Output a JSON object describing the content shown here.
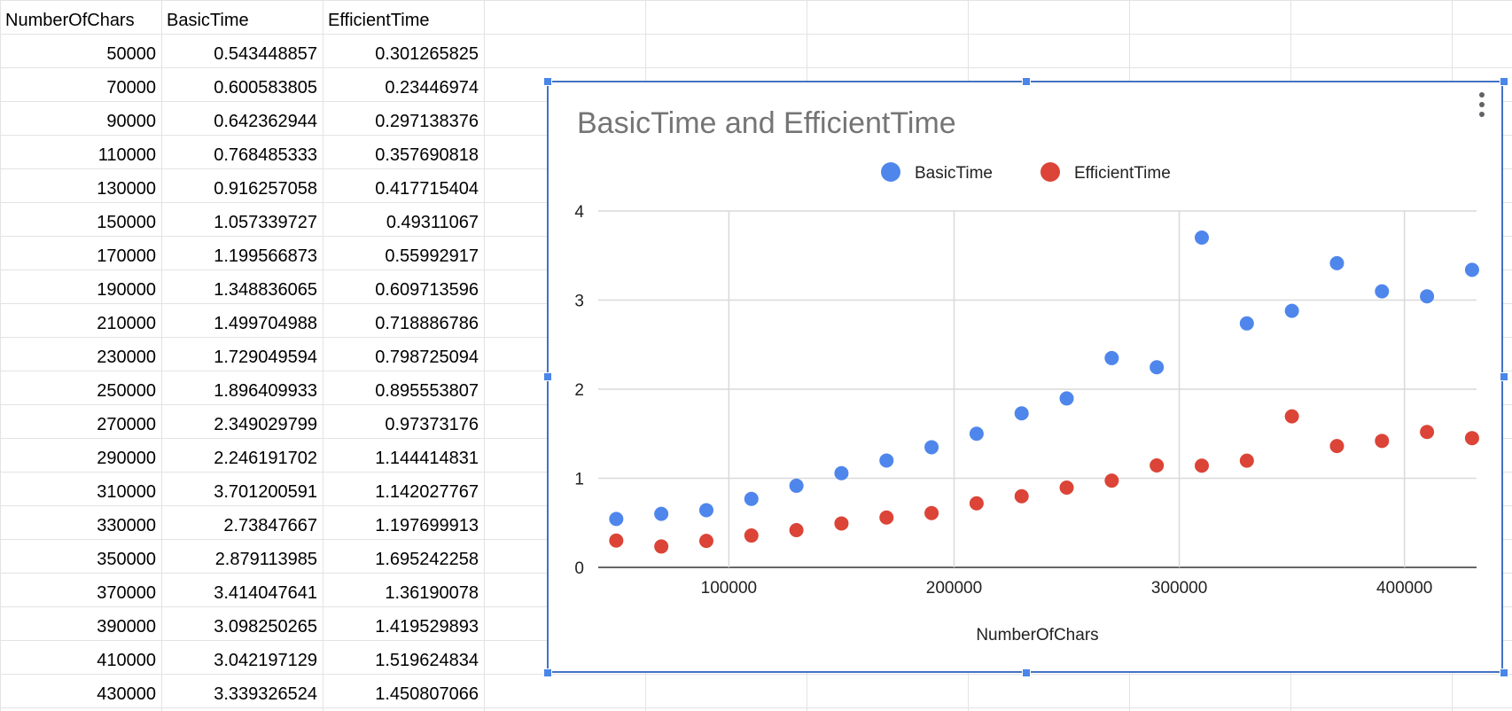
{
  "sheet": {
    "headers": [
      "NumberOfChars",
      "BasicTime",
      "EfficientTime"
    ],
    "rows": [
      [
        "50000",
        "0.543448857",
        "0.301265825"
      ],
      [
        "70000",
        "0.600583805",
        "0.23446974"
      ],
      [
        "90000",
        "0.642362944",
        "0.297138376"
      ],
      [
        "110000",
        "0.768485333",
        "0.357690818"
      ],
      [
        "130000",
        "0.916257058",
        "0.417715404"
      ],
      [
        "150000",
        "1.057339727",
        "0.49311067"
      ],
      [
        "170000",
        "1.199566873",
        "0.55992917"
      ],
      [
        "190000",
        "1.348836065",
        "0.609713596"
      ],
      [
        "210000",
        "1.499704988",
        "0.718886786"
      ],
      [
        "230000",
        "1.729049594",
        "0.798725094"
      ],
      [
        "250000",
        "1.896409933",
        "0.895553807"
      ],
      [
        "270000",
        "2.349029799",
        "0.97373176"
      ],
      [
        "290000",
        "2.246191702",
        "1.144414831"
      ],
      [
        "310000",
        "3.701200591",
        "1.142027767"
      ],
      [
        "330000",
        "2.73847667",
        "1.197699913"
      ],
      [
        "350000",
        "2.879113985",
        "1.695242258"
      ],
      [
        "370000",
        "3.414047641",
        "1.36190078"
      ],
      [
        "390000",
        "3.098250265",
        "1.419529893"
      ],
      [
        "410000",
        "3.042197129",
        "1.519624834"
      ],
      [
        "430000",
        "3.339326524",
        "1.450807066"
      ]
    ]
  },
  "chart_data": {
    "type": "scatter",
    "title": "BasicTime and EfficientTime",
    "xlabel": "NumberOfChars",
    "ylabel": "",
    "xlim": [
      42000,
      432000
    ],
    "ylim": [
      0,
      4
    ],
    "xticks": [
      100000,
      200000,
      300000,
      400000
    ],
    "yticks": [
      0,
      1,
      2,
      3,
      4
    ],
    "grid": true,
    "legend_position": "top",
    "x": [
      50000,
      70000,
      90000,
      110000,
      130000,
      150000,
      170000,
      190000,
      210000,
      230000,
      250000,
      270000,
      290000,
      310000,
      330000,
      350000,
      370000,
      390000,
      410000,
      430000
    ],
    "series": [
      {
        "name": "BasicTime",
        "color": "#4f86ec",
        "values": [
          0.543448857,
          0.600583805,
          0.642362944,
          0.768485333,
          0.916257058,
          1.057339727,
          1.199566873,
          1.348836065,
          1.499704988,
          1.729049594,
          1.896409933,
          2.349029799,
          2.246191702,
          3.701200591,
          2.73847667,
          2.879113985,
          3.414047641,
          3.098250265,
          3.042197129,
          3.339326524
        ]
      },
      {
        "name": "EfficientTime",
        "color": "#db4437",
        "values": [
          0.301265825,
          0.23446974,
          0.297138376,
          0.357690818,
          0.417715404,
          0.49311067,
          0.55992917,
          0.609713596,
          0.718886786,
          0.798725094,
          0.895553807,
          0.97373176,
          1.144414831,
          1.142027767,
          1.197699913,
          1.695242258,
          1.36190078,
          1.419529893,
          1.519624834,
          1.450807066
        ]
      }
    ]
  },
  "chart_menu": {
    "icon": "more-vert-icon"
  }
}
